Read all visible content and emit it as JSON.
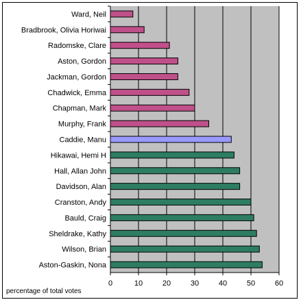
{
  "chart_data": {
    "type": "bar",
    "orientation": "horizontal",
    "title": "",
    "xlabel": "percentage of total votes",
    "ylabel": "",
    "xlim": [
      0,
      60
    ],
    "xticks": [
      0,
      10,
      20,
      30,
      40,
      50,
      60
    ],
    "grid": "vertical gridlines at each tick",
    "plot_background": "#c0c0c0",
    "legend": "none",
    "categories": [
      "Ward, Neil",
      "Bradbrook, Olivia Horiwai",
      "Radomske, Clare",
      "Aston, Gordon",
      "Jackman, Gordon",
      "Chadwick, Emma",
      "Chapman, Mark",
      "Murphy, Frank",
      "Caddie, Manu",
      "Hikawai, Hemi H",
      "Hall, Allan John",
      "Davidson, Alan",
      "Cranston, Andy",
      "Bauld, Craig",
      "Sheldrake, Kathy",
      "Wilson, Brian",
      "Aston-Gaskin, Nona"
    ],
    "values": [
      8,
      12,
      21,
      24,
      24,
      28,
      30,
      35,
      43,
      44,
      46,
      46,
      50,
      51,
      52,
      53,
      54
    ],
    "bar_colors": [
      "#c0508a",
      "#c0508a",
      "#c0508a",
      "#c0508a",
      "#c0508a",
      "#c0508a",
      "#c0508a",
      "#c0508a",
      "#9999ff",
      "#2e7d63",
      "#2e7d63",
      "#2e7d63",
      "#2e7d63",
      "#2e7d63",
      "#2e7d63",
      "#2e7d63",
      "#2e7d63"
    ]
  }
}
